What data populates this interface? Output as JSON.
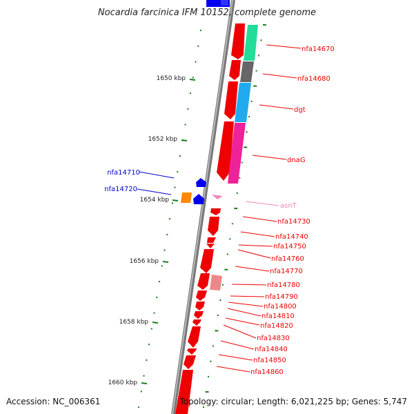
{
  "title": "Nocardia farcinica IFM 10152, complete genome",
  "accession": "Accession: NC_006361",
  "topology": "Topology: circular; Length: 6,021,225 bp; Genes: 5,747",
  "ticks": [
    {
      "label": "1650 kbp"
    },
    {
      "label": "1652 kbp"
    },
    {
      "label": "1654 kbp"
    },
    {
      "label": "1656 kbp"
    },
    {
      "label": "1658 kbp"
    },
    {
      "label": "1660 kbp"
    }
  ],
  "colors": {
    "forward_gene": "#ee0000",
    "reverse_gene": "#0000ee",
    "rna": "#ffaacc",
    "backbone": "#888888",
    "tick": "#1a7a1a",
    "cog_green": "#22dd99",
    "cog_gray": "#666666",
    "cog_cyan": "#22aaee",
    "cog_magenta": "#ee2299",
    "cog_orange": "#ff8800",
    "cog_pink": "#ee8888"
  },
  "genes": [
    {
      "name": "nfa14670",
      "color": "#ee0000"
    },
    {
      "name": "nfa14680",
      "color": "#ee0000"
    },
    {
      "name": "dgt",
      "color": "#ee0000"
    },
    {
      "name": "dnaG",
      "color": "#ee0000"
    },
    {
      "name": "nfa14710",
      "color": "#0000cc"
    },
    {
      "name": "nfa14720",
      "color": "#0000cc"
    },
    {
      "name": "asnT",
      "color": "#ee88bb"
    },
    {
      "name": "nfa14730",
      "color": "#ee0000"
    },
    {
      "name": "nfa14740",
      "color": "#ee0000"
    },
    {
      "name": "nfa14750",
      "color": "#ee0000"
    },
    {
      "name": "nfa14760",
      "color": "#ee0000"
    },
    {
      "name": "nfa14770",
      "color": "#ee0000"
    },
    {
      "name": "nfa14780",
      "color": "#ee0000"
    },
    {
      "name": "nfa14790",
      "color": "#ee0000"
    },
    {
      "name": "nfa14800",
      "color": "#ee0000"
    },
    {
      "name": "nfa14810",
      "color": "#ee0000"
    },
    {
      "name": "nfa14820",
      "color": "#ee0000"
    },
    {
      "name": "nfa14830",
      "color": "#ee0000"
    },
    {
      "name": "nfa14840",
      "color": "#ee0000"
    },
    {
      "name": "nfa14850",
      "color": "#ee0000"
    },
    {
      "name": "nfa14860",
      "color": "#ee0000"
    }
  ]
}
